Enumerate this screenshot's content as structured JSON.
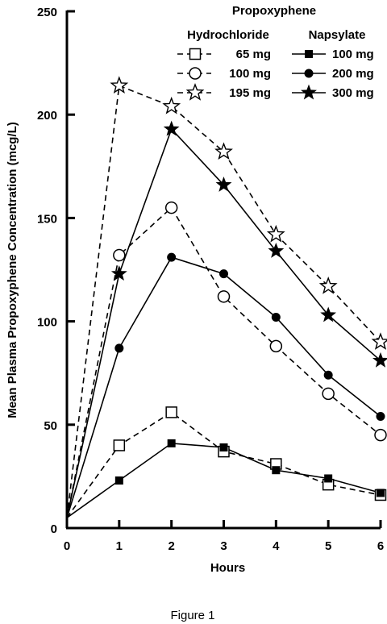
{
  "chart_data": {
    "type": "line",
    "title": "Propoxyphene",
    "xlabel": "Hours",
    "ylabel": "Mean Plasma Propoxyphene Concentration (mcg/L)",
    "xlim": [
      0,
      6
    ],
    "ylim": [
      0,
      250
    ],
    "x_ticks": [
      "0",
      "1",
      "2",
      "3",
      "4",
      "5",
      "6"
    ],
    "y_ticks": [
      "0",
      "50",
      "100",
      "150",
      "200",
      "250"
    ],
    "grid": false,
    "legend": {
      "placement": "top-right",
      "groups": [
        {
          "title": "Hydrochloride",
          "entries": [
            "65 mg",
            "100 mg",
            "195 mg"
          ]
        },
        {
          "title": "Napsylate",
          "entries": [
            "100 mg",
            "200 mg",
            "300 mg"
          ]
        }
      ]
    },
    "x": [
      0,
      1,
      2,
      3,
      4,
      5,
      6
    ],
    "series": [
      {
        "name": "Hydrochloride 65 mg",
        "line": "dashed",
        "marker": "open-square",
        "values": [
          5,
          40,
          56,
          37,
          31,
          21,
          16
        ]
      },
      {
        "name": "Hydrochloride 100 mg",
        "line": "dashed",
        "marker": "open-circle",
        "values": [
          5,
          132,
          155,
          112,
          88,
          65,
          45
        ]
      },
      {
        "name": "Hydrochloride 195 mg",
        "line": "dashed",
        "marker": "open-star",
        "values": [
          5,
          214,
          204,
          182,
          142,
          117,
          90
        ]
      },
      {
        "name": "Napsylate 100 mg",
        "line": "solid",
        "marker": "filled-square",
        "values": [
          5,
          23,
          41,
          39,
          28,
          24,
          17
        ]
      },
      {
        "name": "Napsylate 200 mg",
        "line": "solid",
        "marker": "filled-circle",
        "values": [
          5,
          87,
          131,
          123,
          102,
          74,
          54
        ]
      },
      {
        "name": "Napsylate 300 mg",
        "line": "solid",
        "marker": "filled-star",
        "values": [
          5,
          123,
          193,
          166,
          134,
          103,
          81
        ]
      }
    ]
  },
  "caption": "Figure 1"
}
